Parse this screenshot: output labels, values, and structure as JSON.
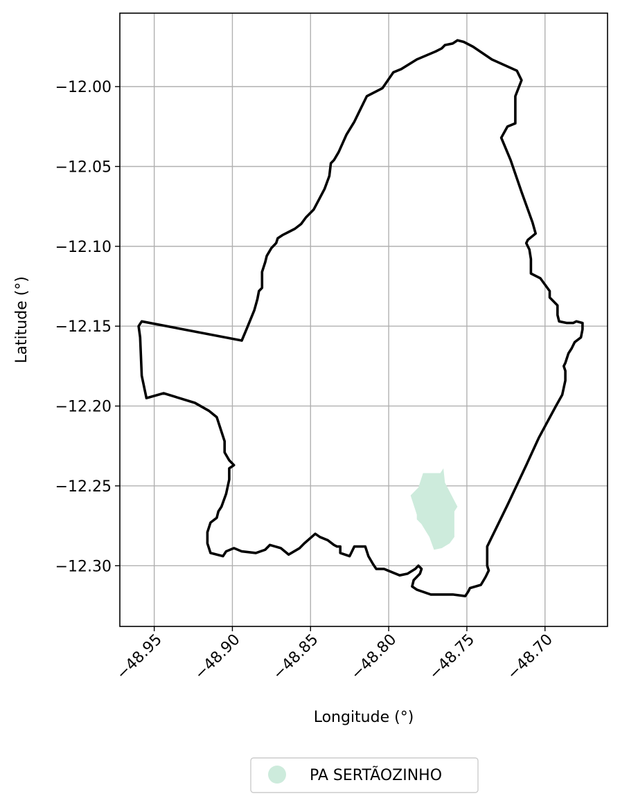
{
  "chart_data": {
    "type": "map",
    "title": "",
    "xlabel": "Longitude (°)",
    "ylabel": "Latitude (°)",
    "xlim": [
      -48.972,
      -48.66
    ],
    "ylim": [
      -12.338,
      -11.954
    ],
    "grid": true,
    "x_ticks": [
      {
        "value": -48.95,
        "label": "−48.95"
      },
      {
        "value": -48.9,
        "label": "−48.90"
      },
      {
        "value": -48.85,
        "label": "−48.85"
      },
      {
        "value": -48.8,
        "label": "−48.80"
      },
      {
        "value": -48.75,
        "label": "−48.75"
      },
      {
        "value": -48.7,
        "label": "−48.70"
      }
    ],
    "y_ticks": [
      {
        "value": -12.0,
        "label": "−12.00"
      },
      {
        "value": -12.05,
        "label": "−12.05"
      },
      {
        "value": -12.1,
        "label": "−12.10"
      },
      {
        "value": -12.15,
        "label": "−12.15"
      },
      {
        "value": -12.2,
        "label": "−12.20"
      },
      {
        "value": -12.25,
        "label": "−12.25"
      },
      {
        "value": -12.3,
        "label": "−12.30"
      }
    ],
    "boundary": {
      "color": "#000000",
      "points": [
        [
          -48.756,
          -11.971
        ],
        [
          -48.759,
          -11.973
        ],
        [
          -48.764,
          -11.974
        ],
        [
          -48.766,
          -11.976
        ],
        [
          -48.77,
          -11.978
        ],
        [
          -48.782,
          -11.983
        ],
        [
          -48.792,
          -11.989
        ],
        [
          -48.797,
          -11.991
        ],
        [
          -48.804,
          -12.001
        ],
        [
          -48.814,
          -12.006
        ],
        [
          -48.819,
          -12.016
        ],
        [
          -48.822,
          -12.022
        ],
        [
          -48.827,
          -12.03
        ],
        [
          -48.832,
          -12.041
        ],
        [
          -48.835,
          -12.046
        ],
        [
          -48.837,
          -12.048
        ],
        [
          -48.838,
          -12.056
        ],
        [
          -48.841,
          -12.064
        ],
        [
          -48.848,
          -12.077
        ],
        [
          -48.853,
          -12.082
        ],
        [
          -48.856,
          -12.086
        ],
        [
          -48.86,
          -12.089
        ],
        [
          -48.864,
          -12.091
        ],
        [
          -48.868,
          -12.093
        ],
        [
          -48.871,
          -12.095
        ],
        [
          -48.872,
          -12.098
        ],
        [
          -48.875,
          -12.101
        ],
        [
          -48.878,
          -12.106
        ],
        [
          -48.879,
          -12.11
        ],
        [
          -48.881,
          -12.116
        ],
        [
          -48.881,
          -12.126
        ],
        [
          -48.883,
          -12.128
        ],
        [
          -48.884,
          -12.133
        ],
        [
          -48.886,
          -12.14
        ],
        [
          -48.891,
          -12.152
        ],
        [
          -48.894,
          -12.159
        ],
        [
          -48.958,
          -12.147
        ],
        [
          -48.96,
          -12.15
        ],
        [
          -48.959,
          -12.157
        ],
        [
          -48.958,
          -12.181
        ],
        [
          -48.955,
          -12.195
        ],
        [
          -48.944,
          -12.192
        ],
        [
          -48.924,
          -12.198
        ],
        [
          -48.915,
          -12.203
        ],
        [
          -48.91,
          -12.207
        ],
        [
          -48.908,
          -12.213
        ],
        [
          -48.905,
          -12.222
        ],
        [
          -48.905,
          -12.229
        ],
        [
          -48.902,
          -12.234
        ],
        [
          -48.899,
          -12.237
        ],
        [
          -48.902,
          -12.239
        ],
        [
          -48.902,
          -12.246
        ],
        [
          -48.904,
          -12.255
        ],
        [
          -48.907,
          -12.263
        ],
        [
          -48.909,
          -12.266
        ],
        [
          -48.91,
          -12.27
        ],
        [
          -48.914,
          -12.273
        ],
        [
          -48.916,
          -12.279
        ],
        [
          -48.916,
          -12.286
        ],
        [
          -48.914,
          -12.292
        ],
        [
          -48.906,
          -12.294
        ],
        [
          -48.904,
          -12.291
        ],
        [
          -48.899,
          -12.289
        ],
        [
          -48.894,
          -12.291
        ],
        [
          -48.885,
          -12.292
        ],
        [
          -48.879,
          -12.29
        ],
        [
          -48.876,
          -12.287
        ],
        [
          -48.869,
          -12.289
        ],
        [
          -48.864,
          -12.293
        ],
        [
          -48.857,
          -12.289
        ],
        [
          -48.854,
          -12.286
        ],
        [
          -48.847,
          -12.28
        ],
        [
          -48.844,
          -12.282
        ],
        [
          -48.839,
          -12.284
        ],
        [
          -48.835,
          -12.287
        ],
        [
          -48.833,
          -12.288
        ],
        [
          -48.831,
          -12.288
        ],
        [
          -48.831,
          -12.292
        ],
        [
          -48.825,
          -12.294
        ],
        [
          -48.822,
          -12.288
        ],
        [
          -48.815,
          -12.288
        ],
        [
          -48.813,
          -12.294
        ],
        [
          -48.81,
          -12.299
        ],
        [
          -48.808,
          -12.302
        ],
        [
          -48.803,
          -12.302
        ],
        [
          -48.793,
          -12.306
        ],
        [
          -48.788,
          -12.305
        ],
        [
          -48.783,
          -12.302
        ],
        [
          -48.781,
          -12.3
        ],
        [
          -48.779,
          -12.302
        ],
        [
          -48.78,
          -12.305
        ],
        [
          -48.784,
          -12.309
        ],
        [
          -48.785,
          -12.313
        ],
        [
          -48.782,
          -12.315
        ],
        [
          -48.773,
          -12.318
        ],
        [
          -48.759,
          -12.318
        ],
        [
          -48.751,
          -12.319
        ],
        [
          -48.749,
          -12.316
        ],
        [
          -48.748,
          -12.314
        ],
        [
          -48.741,
          -12.312
        ],
        [
          -48.738,
          -12.307
        ],
        [
          -48.736,
          -12.303
        ],
        [
          -48.737,
          -12.3
        ],
        [
          -48.737,
          -12.288
        ],
        [
          -48.724,
          -12.262
        ],
        [
          -48.712,
          -12.237
        ],
        [
          -48.704,
          -12.22
        ],
        [
          -48.693,
          -12.2
        ],
        [
          -48.689,
          -12.193
        ],
        [
          -48.687,
          -12.184
        ],
        [
          -48.687,
          -12.178
        ],
        [
          -48.688,
          -12.175
        ],
        [
          -48.687,
          -12.173
        ],
        [
          -48.685,
          -12.167
        ],
        [
          -48.683,
          -12.164
        ],
        [
          -48.681,
          -12.16
        ],
        [
          -48.677,
          -12.157
        ],
        [
          -48.676,
          -12.152
        ],
        [
          -48.676,
          -12.148
        ],
        [
          -48.68,
          -12.147
        ],
        [
          -48.682,
          -12.148
        ],
        [
          -48.686,
          -12.148
        ],
        [
          -48.691,
          -12.147
        ],
        [
          -48.692,
          -12.143
        ],
        [
          -48.692,
          -12.137
        ],
        [
          -48.697,
          -12.132
        ],
        [
          -48.697,
          -12.128
        ],
        [
          -48.7,
          -12.124
        ],
        [
          -48.703,
          -12.12
        ],
        [
          -48.709,
          -12.117
        ],
        [
          -48.709,
          -12.108
        ],
        [
          -48.71,
          -12.102
        ],
        [
          -48.712,
          -12.098
        ],
        [
          -48.711,
          -12.096
        ],
        [
          -48.706,
          -12.092
        ],
        [
          -48.708,
          -12.085
        ],
        [
          -48.715,
          -12.066
        ],
        [
          -48.722,
          -12.046
        ],
        [
          -48.728,
          -12.032
        ],
        [
          -48.724,
          -12.025
        ],
        [
          -48.719,
          -12.023
        ],
        [
          -48.719,
          -12.006
        ],
        [
          -48.715,
          -11.996
        ],
        [
          -48.718,
          -11.99
        ],
        [
          -48.734,
          -11.983
        ],
        [
          -48.746,
          -11.975
        ],
        [
          -48.752,
          -11.972
        ],
        [
          -48.756,
          -11.971
        ]
      ]
    },
    "regions": [
      {
        "name": "PA SERTÃOZINHO",
        "color": "#cdebdc",
        "points": [
          [
            -48.778,
            -12.242
          ],
          [
            -48.767,
            -12.242
          ],
          [
            -48.765,
            -12.239
          ],
          [
            -48.764,
            -12.248
          ],
          [
            -48.756,
            -12.263
          ],
          [
            -48.758,
            -12.266
          ],
          [
            -48.758,
            -12.282
          ],
          [
            -48.761,
            -12.286
          ],
          [
            -48.766,
            -12.289
          ],
          [
            -48.771,
            -12.29
          ],
          [
            -48.774,
            -12.282
          ],
          [
            -48.779,
            -12.274
          ],
          [
            -48.782,
            -12.271
          ],
          [
            -48.782,
            -12.268
          ],
          [
            -48.786,
            -12.256
          ],
          [
            -48.781,
            -12.251
          ],
          [
            -48.778,
            -12.242
          ]
        ]
      }
    ],
    "legend": {
      "position": "bottom-center",
      "entries": [
        {
          "label": "PA SERTÃOZINHO",
          "color": "#cdebdc",
          "marker": "circle"
        }
      ]
    }
  }
}
